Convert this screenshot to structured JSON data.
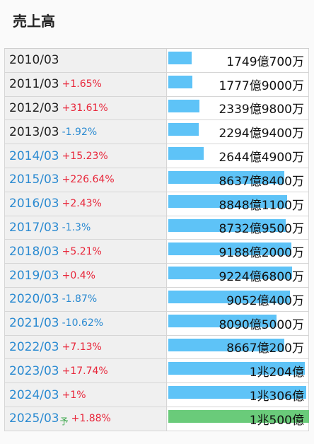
{
  "title": "売上高",
  "colors": {
    "bar": "#5ec3f7",
    "forecast_bar": "#6acb7a",
    "up": "#e8263a",
    "down": "#2a8ad1"
  },
  "chart_data": {
    "type": "bar",
    "max_value_oku": 10500,
    "rows": [
      {
        "year": "2010/03",
        "change": "",
        "dir": "",
        "value": "1749億700万",
        "oku": 1749.07,
        "link": false,
        "forecast": false
      },
      {
        "year": "2011/03",
        "change": "+1.65%",
        "dir": "up",
        "value": "1777億9000万",
        "oku": 1777.9,
        "link": false,
        "forecast": false
      },
      {
        "year": "2012/03",
        "change": "+31.61%",
        "dir": "up",
        "value": "2339億9800万",
        "oku": 2339.98,
        "link": false,
        "forecast": false
      },
      {
        "year": "2013/03",
        "change": "-1.92%",
        "dir": "down",
        "value": "2294億9400万",
        "oku": 2294.94,
        "link": false,
        "forecast": false
      },
      {
        "year": "2014/03",
        "change": "+15.23%",
        "dir": "up",
        "value": "2644億4900万",
        "oku": 2644.49,
        "link": true,
        "forecast": false
      },
      {
        "year": "2015/03",
        "change": "+226.64%",
        "dir": "up",
        "value": "8637億8400万",
        "oku": 8637.84,
        "link": true,
        "forecast": false
      },
      {
        "year": "2016/03",
        "change": "+2.43%",
        "dir": "up",
        "value": "8848億1100万",
        "oku": 8848.11,
        "link": true,
        "forecast": false
      },
      {
        "year": "2017/03",
        "change": "-1.3%",
        "dir": "down",
        "value": "8732億9500万",
        "oku": 8732.95,
        "link": true,
        "forecast": false
      },
      {
        "year": "2018/03",
        "change": "+5.21%",
        "dir": "up",
        "value": "9188億2000万",
        "oku": 9188.2,
        "link": true,
        "forecast": false
      },
      {
        "year": "2019/03",
        "change": "+0.4%",
        "dir": "up",
        "value": "9224億6800万",
        "oku": 9224.68,
        "link": true,
        "forecast": false
      },
      {
        "year": "2020/03",
        "change": "-1.87%",
        "dir": "down",
        "value": "9052億400万",
        "oku": 9052.04,
        "link": true,
        "forecast": false
      },
      {
        "year": "2021/03",
        "change": "-10.62%",
        "dir": "down",
        "value": "8090億5000万",
        "oku": 8090.5,
        "link": true,
        "forecast": false
      },
      {
        "year": "2022/03",
        "change": "+7.13%",
        "dir": "up",
        "value": "8667億200万",
        "oku": 8667.02,
        "link": true,
        "forecast": false
      },
      {
        "year": "2023/03",
        "change": "+17.74%",
        "dir": "up",
        "value": "1兆204億",
        "oku": 10204,
        "link": true,
        "forecast": false
      },
      {
        "year": "2024/03",
        "change": "+1%",
        "dir": "up",
        "value": "1兆306億",
        "oku": 10306,
        "link": true,
        "forecast": false
      },
      {
        "year": "2025/03",
        "yoshi": "予",
        "change": "+1.88%",
        "dir": "up",
        "value": "1兆500億",
        "oku": 10500,
        "link": true,
        "forecast": true
      }
    ]
  }
}
